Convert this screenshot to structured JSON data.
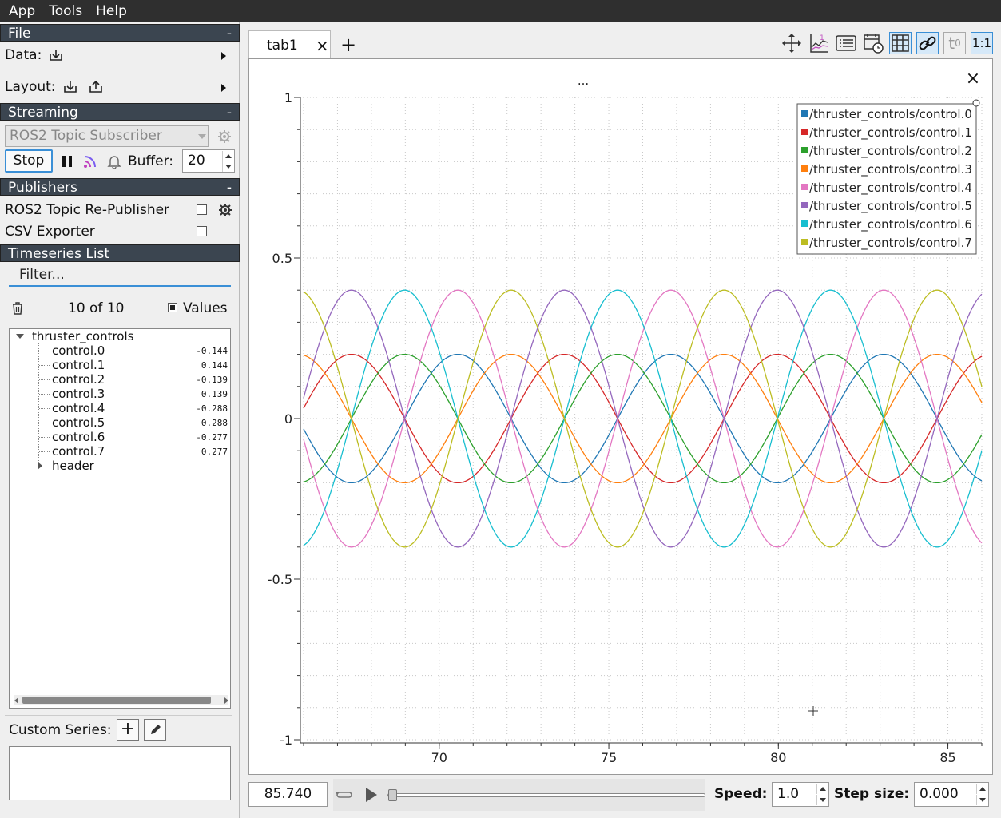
{
  "menu": [
    "App",
    "Tools",
    "Help"
  ],
  "file": {
    "header": "File",
    "collapse": "-",
    "data_label": "Data:",
    "layout_label": "Layout:"
  },
  "streaming": {
    "header": "Streaming",
    "collapse": "-",
    "source": "ROS2 Topic Subscriber",
    "stop_label": "Stop",
    "buffer_label": "Buffer:",
    "buffer_value": "20"
  },
  "publishers": {
    "header": "Publishers",
    "collapse": "-",
    "items": [
      "ROS2 Topic Re-Publisher",
      "CSV Exporter"
    ]
  },
  "timeseries": {
    "header": "Timeseries List",
    "filter_placeholder": "Filter...",
    "count": "10 of 10",
    "values_label": "Values",
    "root": "thruster_controls",
    "items": [
      {
        "name": "control.0",
        "value": "-0.144"
      },
      {
        "name": "control.1",
        "value": "0.144"
      },
      {
        "name": "control.2",
        "value": "-0.139"
      },
      {
        "name": "control.3",
        "value": "0.139"
      },
      {
        "name": "control.4",
        "value": "-0.288"
      },
      {
        "name": "control.5",
        "value": "0.288"
      },
      {
        "name": "control.6",
        "value": "-0.277"
      },
      {
        "name": "control.7",
        "value": "0.277"
      }
    ],
    "header_node": "header"
  },
  "custom_series": {
    "label": "Custom Series:"
  },
  "tabs": {
    "active": "tab1",
    "close": "×",
    "add": "+"
  },
  "plot": {
    "title": "...",
    "close": "×"
  },
  "playback": {
    "time": "85.740",
    "speed_label": "Speed:",
    "speed_value": "1.0",
    "step_label": "Step size:",
    "step_value": "0.000",
    "progress": 0.0
  },
  "toolbar": {
    "ratio_label": "1:1"
  },
  "chart_data": {
    "type": "line",
    "xlim": [
      66.0,
      86.0
    ],
    "ylim": [
      -1,
      1
    ],
    "x_ticks": [
      "70",
      "75",
      "80",
      "85"
    ],
    "y_ticks": [
      "1",
      "0.5",
      "0",
      "-0.5",
      "-1"
    ],
    "grid": true,
    "legend_position": "top-right",
    "period": 6.28,
    "series": [
      {
        "name": "/thruster_controls/control.0",
        "color": "#1f77b4",
        "amplitude": 0.2,
        "phase_deg": 0
      },
      {
        "name": "/thruster_controls/control.1",
        "color": "#d62728",
        "amplitude": 0.2,
        "phase_deg": 180
      },
      {
        "name": "/thruster_controls/control.2",
        "color": "#2ca02c",
        "amplitude": 0.2,
        "phase_deg": 90
      },
      {
        "name": "/thruster_controls/control.3",
        "color": "#ff7f0e",
        "amplitude": 0.2,
        "phase_deg": 270
      },
      {
        "name": "/thruster_controls/control.4",
        "color": "#e377c2",
        "amplitude": 0.4,
        "phase_deg": 0
      },
      {
        "name": "/thruster_controls/control.5",
        "color": "#9467bd",
        "amplitude": 0.4,
        "phase_deg": 180
      },
      {
        "name": "/thruster_controls/control.6",
        "color": "#17becf",
        "amplitude": 0.4,
        "phase_deg": 90
      },
      {
        "name": "/thruster_controls/control.7",
        "color": "#bcbd22",
        "amplitude": 0.4,
        "phase_deg": 270
      }
    ]
  }
}
